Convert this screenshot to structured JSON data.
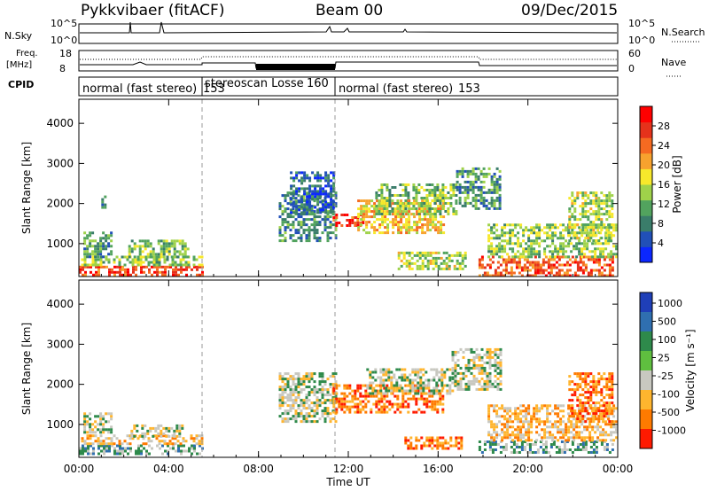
{
  "header": {
    "station": "Pykkvibaer (fitACF)",
    "beam": "Beam 00",
    "date": "09/Dec/2015"
  },
  "status_panels": {
    "nsky_label": "N.Sky",
    "nsearch_label": "N.Search",
    "nsky_ticks": [
      "10^5",
      "10^0"
    ],
    "nsearch_ticks": [
      "10^5",
      "10^0"
    ],
    "freq_label_1": "Freq.",
    "freq_label_2": "[MHz]",
    "freq_ticks": [
      "18",
      "8"
    ],
    "nave_label": "Nave",
    "nave_ticks": [
      "60",
      "0"
    ],
    "cpid_label": "CPID",
    "cpid_segments": [
      {
        "name": "normal (fast stereo)",
        "id": "153",
        "start_h": 0,
        "end_h": 5.5
      },
      {
        "name": "stereoscan Losse",
        "id": "160",
        "start_h": 5.5,
        "end_h": 11.6
      },
      {
        "name": "normal (fast stereo)",
        "id": "153",
        "start_h": 11.6,
        "end_h": 24
      }
    ]
  },
  "chart_data": [
    {
      "type": "heatmap",
      "parameter": "Power",
      "ylabel": "Slant Range [km]",
      "ylim": [
        180,
        4600
      ],
      "yticks": [
        1000,
        2000,
        3000,
        4000
      ],
      "xlim": [
        0,
        24
      ],
      "xticks": [
        "00:00",
        "04:00",
        "08:00",
        "12:00",
        "16:00",
        "20:00",
        "00:00"
      ],
      "colorbar": {
        "label": "Power [dB]",
        "ticks": [
          "4",
          "8",
          "12",
          "16",
          "20",
          "24",
          "28"
        ],
        "colors": [
          "#0b27ff",
          "#2150b8",
          "#3a7d6a",
          "#52a35e",
          "#9fd24a",
          "#f7e82b",
          "#f7a22e",
          "#f56a21",
          "#e5321b",
          "#ff0000"
        ]
      },
      "echo_regions": [
        {
          "t0": 0.0,
          "t1": 5.5,
          "r0": 250,
          "r1": 450,
          "level": 26
        },
        {
          "t0": 0.1,
          "t1": 5.5,
          "r0": 450,
          "r1": 700,
          "level": 14
        },
        {
          "t0": 0.2,
          "t1": 1.4,
          "r0": 700,
          "r1": 1300,
          "level": 10
        },
        {
          "t0": 2.2,
          "t1": 4.9,
          "r0": 700,
          "r1": 1100,
          "level": 13
        },
        {
          "t0": 1.0,
          "t1": 1.2,
          "r0": 1900,
          "r1": 2200,
          "level": 8
        },
        {
          "t0": 8.9,
          "t1": 11.5,
          "r0": 1100,
          "r1": 2300,
          "level": 9
        },
        {
          "t0": 9.4,
          "t1": 11.3,
          "r0": 1800,
          "r1": 2800,
          "level": 6
        },
        {
          "t0": 11.3,
          "t1": 12.7,
          "r0": 1450,
          "r1": 1750,
          "level": 26
        },
        {
          "t0": 12.4,
          "t1": 16.2,
          "r0": 1300,
          "r1": 2100,
          "level": 19
        },
        {
          "t0": 13.2,
          "t1": 16.8,
          "r0": 1750,
          "r1": 2500,
          "level": 13
        },
        {
          "t0": 14.2,
          "t1": 17.2,
          "r0": 400,
          "r1": 800,
          "level": 15
        },
        {
          "t0": 16.8,
          "t1": 18.8,
          "r0": 1900,
          "r1": 2900,
          "level": 10
        },
        {
          "t0": 17.8,
          "t1": 23.8,
          "r0": 200,
          "r1": 700,
          "level": 25
        },
        {
          "t0": 18.2,
          "t1": 23.9,
          "r0": 650,
          "r1": 1500,
          "level": 14
        },
        {
          "t0": 21.8,
          "t1": 23.8,
          "r0": 1100,
          "r1": 2300,
          "level": 15
        }
      ]
    },
    {
      "type": "heatmap",
      "parameter": "Velocity",
      "ylabel": "Slant Range [km]",
      "ylim": [
        180,
        4600
      ],
      "yticks": [
        1000,
        2000,
        3000,
        4000
      ],
      "xlim": [
        0,
        24
      ],
      "xticks": [
        "00:00",
        "04:00",
        "08:00",
        "12:00",
        "16:00",
        "20:00",
        "00:00"
      ],
      "xlabel": "Time UT",
      "colorbar": {
        "label": "Velocity [m s⁻¹]",
        "ticks": [
          "1000",
          "500",
          "100",
          "25",
          "-25",
          "-100",
          "-500",
          "-1000"
        ],
        "colors": [
          "#1f3fb8",
          "#2f6fb0",
          "#2e8a4b",
          "#5fbf3f",
          "#c8c8c0",
          "#ffb52e",
          "#ff7a00",
          "#ff1a00"
        ]
      },
      "echo_regions": [
        {
          "t0": 0.0,
          "t1": 5.5,
          "r0": 250,
          "r1": 500,
          "level": 1
        },
        {
          "t0": 0.1,
          "t1": 5.5,
          "r0": 500,
          "r1": 750,
          "level": -1
        },
        {
          "t0": 0.2,
          "t1": 1.4,
          "r0": 800,
          "r1": 1300,
          "level": 0
        },
        {
          "t0": 2.3,
          "t1": 4.6,
          "r0": 700,
          "r1": 1000,
          "level": 0
        },
        {
          "t0": 8.9,
          "t1": 11.5,
          "r0": 1100,
          "r1": 2300,
          "level": 0
        },
        {
          "t0": 11.3,
          "t1": 16.2,
          "r0": 1300,
          "r1": 2000,
          "level": -2
        },
        {
          "t0": 12.8,
          "t1": 16.8,
          "r0": 1800,
          "r1": 2400,
          "level": 0
        },
        {
          "t0": 14.5,
          "t1": 17.0,
          "r0": 400,
          "r1": 700,
          "level": -2
        },
        {
          "t0": 16.6,
          "t1": 18.8,
          "r0": 1900,
          "r1": 2900,
          "level": 0
        },
        {
          "t0": 17.8,
          "t1": 23.8,
          "r0": 300,
          "r1": 600,
          "level": 1
        },
        {
          "t0": 18.2,
          "t1": 23.9,
          "r0": 600,
          "r1": 1500,
          "level": -1
        },
        {
          "t0": 21.8,
          "t1": 23.8,
          "r0": 1100,
          "r1": 2300,
          "level": -2
        }
      ]
    }
  ]
}
